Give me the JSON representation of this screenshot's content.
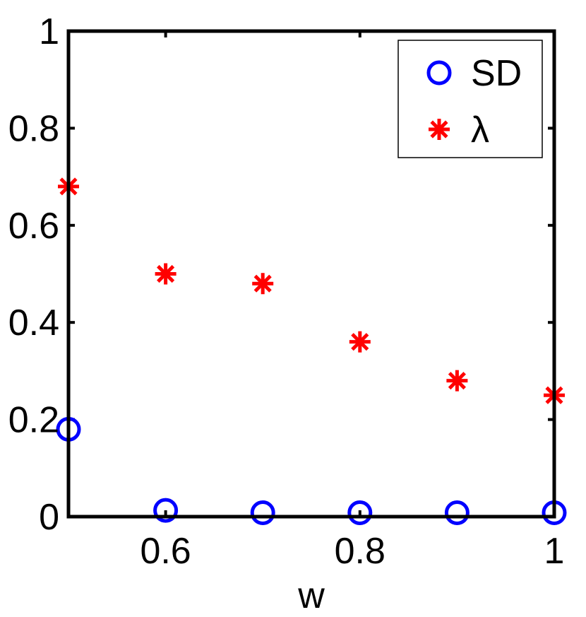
{
  "chart_data": {
    "type": "scatter",
    "xlabel": "w",
    "ylabel": "",
    "xlim": [
      0.5,
      1.0
    ],
    "ylim": [
      0,
      1
    ],
    "xticks": [
      {
        "value": 0.6,
        "label": "0.6"
      },
      {
        "value": 0.8,
        "label": "0.8"
      },
      {
        "value": 1.0,
        "label": "1"
      }
    ],
    "yticks": [
      {
        "value": 0,
        "label": "0"
      },
      {
        "value": 0.2,
        "label": "0.2"
      },
      {
        "value": 0.4,
        "label": "0.4"
      },
      {
        "value": 0.6,
        "label": "0.6"
      },
      {
        "value": 0.8,
        "label": "0.8"
      },
      {
        "value": 1.0,
        "label": "1"
      }
    ],
    "grid": false,
    "legend_position": "top-right",
    "series": [
      {
        "name": "SD",
        "marker": "circle",
        "color": "#0000ff",
        "x": [
          0.5,
          0.6,
          0.7,
          0.8,
          0.9,
          1.0
        ],
        "y": [
          0.18,
          0.013,
          0.008,
          0.008,
          0.008,
          0.008
        ]
      },
      {
        "name": "λ",
        "marker": "asterisk",
        "color": "#ff0000",
        "x": [
          0.5,
          0.6,
          0.7,
          0.8,
          0.9,
          1.0
        ],
        "y": [
          0.68,
          0.5,
          0.48,
          0.36,
          0.28,
          0.25
        ]
      }
    ]
  }
}
